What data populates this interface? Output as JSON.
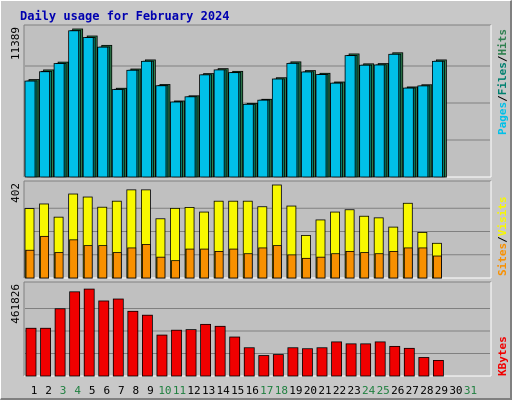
{
  "title": "Daily usage for February 2024",
  "colors": {
    "pages": "#00c0e8",
    "files": "#008070",
    "hits": "#308050",
    "visits": "#f8f800",
    "sites": "#f89000",
    "kbytes": "#f00000",
    "weekend_label": "#208040",
    "weekday_label": "#000000",
    "title": "#0000b0"
  },
  "chart_data": [
    {
      "type": "bar",
      "panel": "top",
      "max_label": "11389",
      "right_label": [
        "Pages",
        "Files",
        "Hits"
      ],
      "ylim": [
        0,
        11389
      ],
      "categories": [
        "1",
        "2",
        "3",
        "4",
        "5",
        "6",
        "7",
        "8",
        "9",
        "10",
        "11",
        "12",
        "13",
        "14",
        "15",
        "16",
        "17",
        "18",
        "19",
        "20",
        "21",
        "22",
        "23",
        "24",
        "25",
        "26",
        "27",
        "28",
        "29",
        "30",
        "31"
      ],
      "series": [
        {
          "name": "Hits",
          "values": [
            7500,
            8240,
            8840,
            11390,
            10850,
            10130,
            6830,
            8310,
            9010,
            7120,
            5850,
            6250,
            7960,
            8340,
            8130,
            5670,
            5980,
            7640,
            8860,
            8190,
            7980,
            7310,
            9470,
            8710,
            8730,
            9560,
            6930,
            7100,
            9010,
            null,
            null
          ]
        },
        {
          "name": "Files",
          "values": [
            7400,
            8130,
            8740,
            11270,
            10740,
            10010,
            6750,
            8220,
            8910,
            7040,
            5780,
            6180,
            7870,
            8250,
            8040,
            5600,
            5920,
            7550,
            8760,
            8100,
            7890,
            7230,
            9360,
            8610,
            8640,
            9450,
            6850,
            7020,
            8910,
            null,
            null
          ]
        },
        {
          "name": "Pages",
          "values": [
            7380,
            8100,
            8730,
            11250,
            10730,
            9990,
            6730,
            8210,
            8900,
            7020,
            5770,
            6170,
            7860,
            8240,
            8030,
            5590,
            5910,
            7540,
            8740,
            8080,
            7880,
            7220,
            9340,
            8600,
            8620,
            9440,
            6840,
            7010,
            8900,
            null,
            null
          ]
        }
      ]
    },
    {
      "type": "bar",
      "panel": "middle",
      "max_label": "402",
      "right_label": [
        "Sites",
        "Visits"
      ],
      "ylim": [
        0,
        402
      ],
      "categories": [
        "1",
        "2",
        "3",
        "4",
        "5",
        "6",
        "7",
        "8",
        "9",
        "10",
        "11",
        "12",
        "13",
        "14",
        "15",
        "16",
        "17",
        "18",
        "19",
        "20",
        "21",
        "22",
        "23",
        "24",
        "25",
        "26",
        "27",
        "28",
        "29",
        "30",
        "31"
      ],
      "series": [
        {
          "name": "Visits",
          "values": [
            300,
            320,
            263,
            363,
            350,
            306,
            332,
            381,
            381,
            256,
            301,
            305,
            285,
            332,
            332,
            332,
            308,
            402,
            311,
            184,
            251,
            285,
            295,
            267,
            260,
            220,
            323,
            197,
            150,
            null,
            null
          ]
        },
        {
          "name": "Sites",
          "values": [
            120,
            180,
            110,
            165,
            140,
            140,
            110,
            130,
            145,
            90,
            75,
            125,
            125,
            115,
            125,
            105,
            130,
            140,
            100,
            85,
            90,
            105,
            115,
            110,
            105,
            115,
            130,
            130,
            95,
            null,
            null
          ]
        }
      ]
    },
    {
      "type": "bar",
      "panel": "bottom",
      "max_label": "461826",
      "right_label": [
        "KBytes"
      ],
      "ylim": [
        0,
        461826
      ],
      "categories": [
        "1",
        "2",
        "3",
        "4",
        "5",
        "6",
        "7",
        "8",
        "9",
        "10",
        "11",
        "12",
        "13",
        "14",
        "15",
        "16",
        "17",
        "18",
        "19",
        "20",
        "21",
        "22",
        "23",
        "24",
        "25",
        "26",
        "27",
        "28",
        "29",
        "30",
        "31"
      ],
      "series": [
        {
          "name": "KBytes",
          "values": [
            245000,
            245000,
            345000,
            432000,
            446000,
            385000,
            395000,
            332000,
            312000,
            210000,
            235000,
            238000,
            265000,
            255000,
            200000,
            145000,
            105000,
            110000,
            145000,
            140000,
            145000,
            175000,
            165000,
            165000,
            175000,
            152000,
            142000,
            95000,
            80000,
            null,
            null
          ]
        }
      ]
    }
  ]
}
